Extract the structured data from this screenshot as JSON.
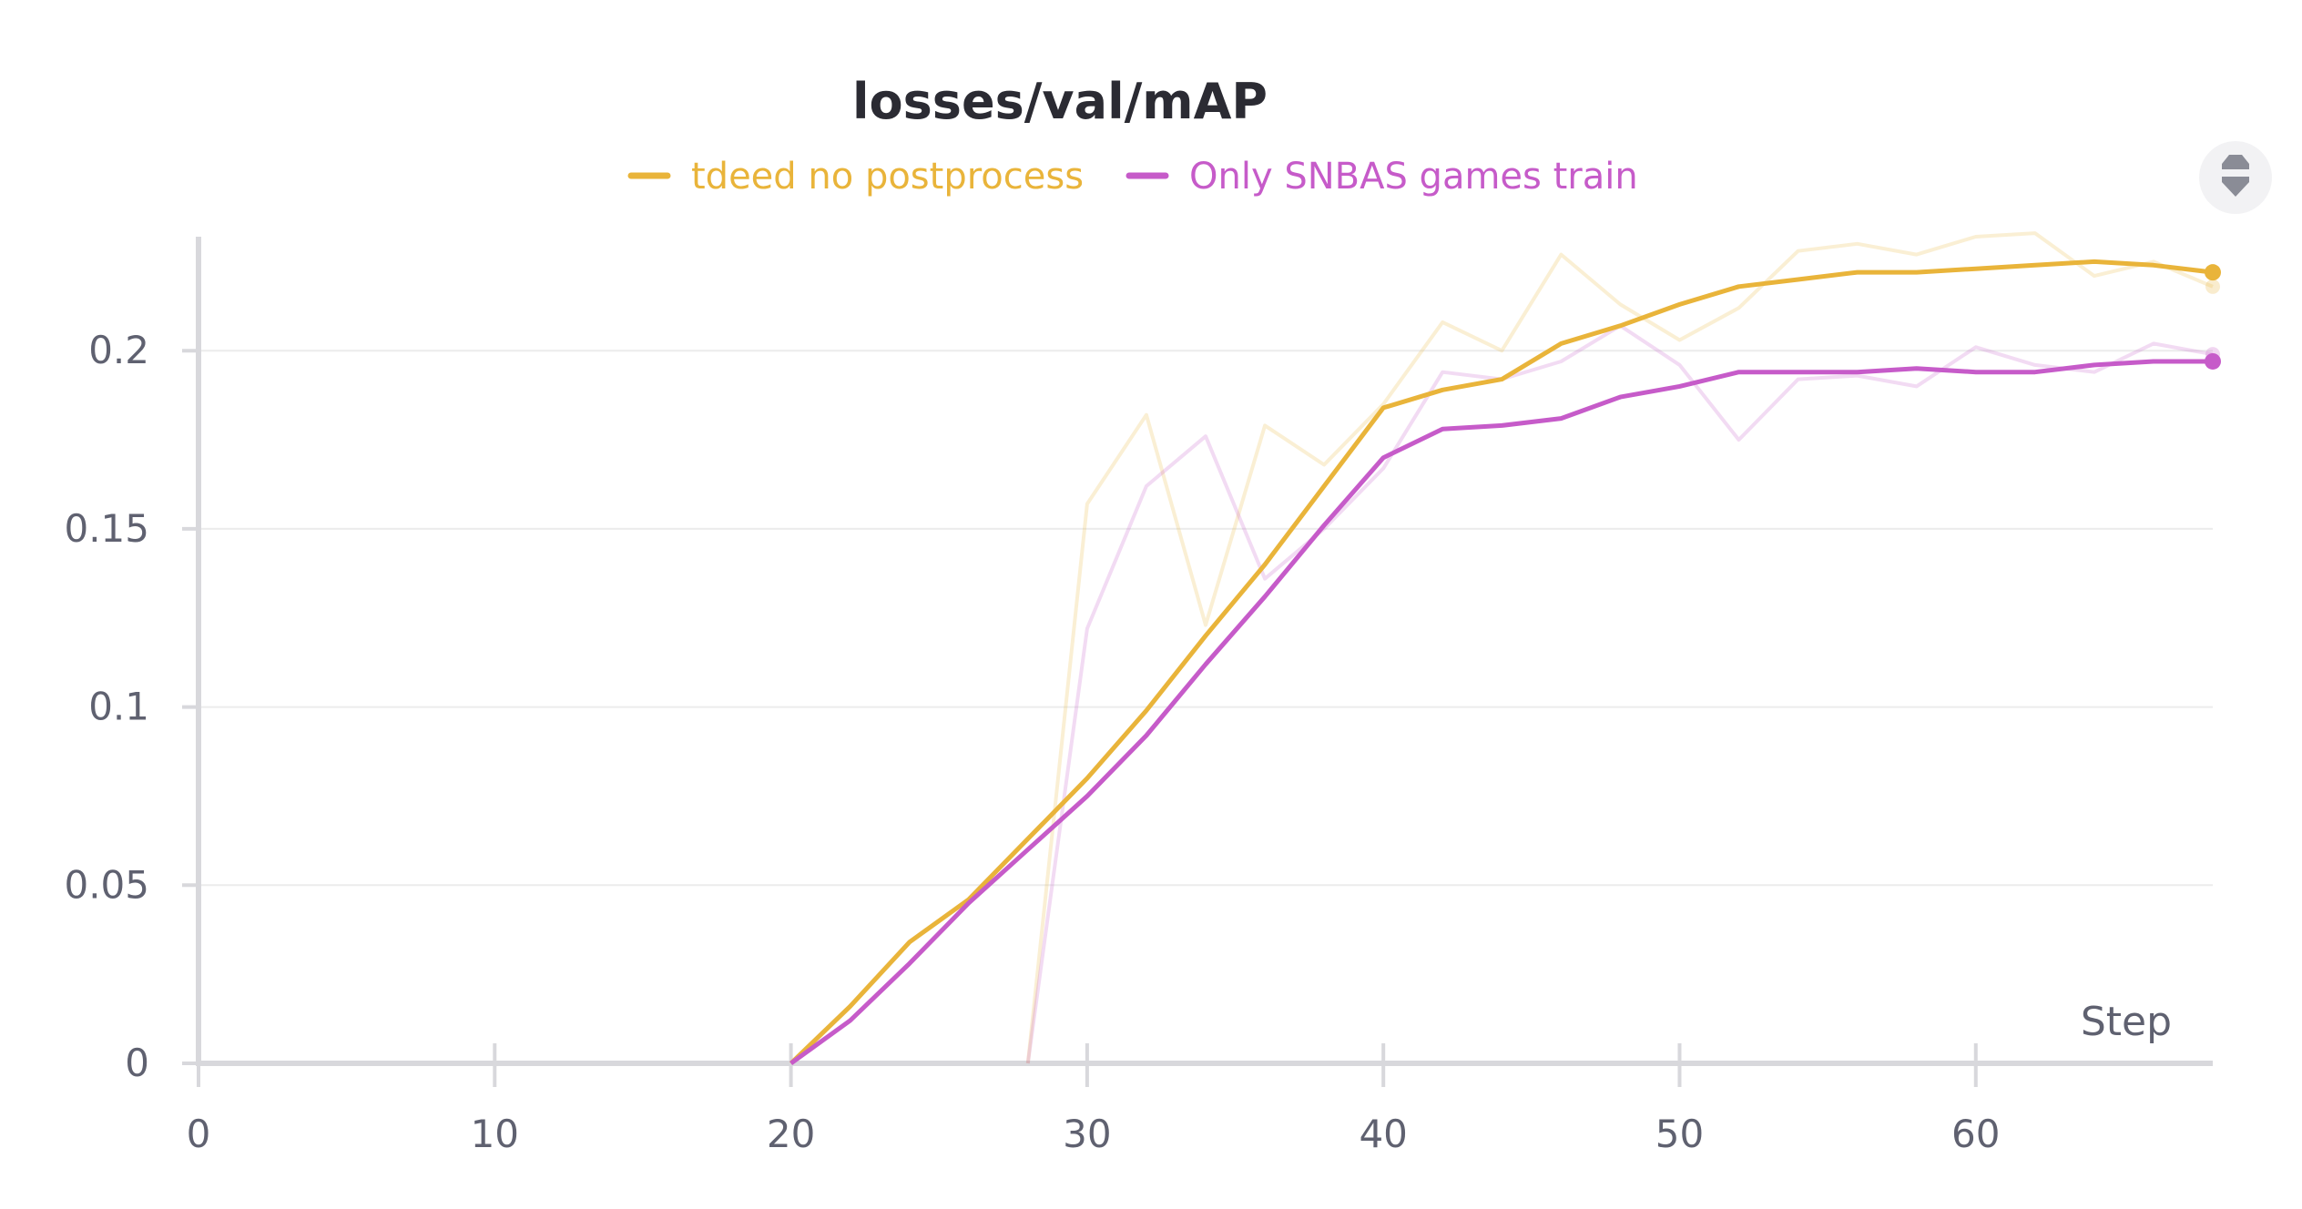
{
  "chart_data": {
    "type": "line",
    "title": "losses/val/mAP",
    "xlabel": "Step",
    "ylabel": "",
    "xlim": [
      0,
      68
    ],
    "ylim": [
      0,
      0.2
    ],
    "x_ticks": [
      "0",
      "10",
      "20",
      "30",
      "40",
      "50",
      "60"
    ],
    "y_ticks": [
      "0",
      "0.05",
      "0.1",
      "0.15",
      "0.2"
    ],
    "legend_position": "top-center",
    "grid": true,
    "series": [
      {
        "name": "tdeed no postprocess",
        "color": "#e9b43a",
        "smoothed": [
          [
            20,
            0
          ],
          [
            22,
            0.016
          ],
          [
            24,
            0.034
          ],
          [
            26,
            0.046
          ],
          [
            28,
            0.063
          ],
          [
            30,
            0.08
          ],
          [
            32,
            0.099
          ],
          [
            34,
            0.12
          ],
          [
            36,
            0.14
          ],
          [
            38,
            0.162
          ],
          [
            40,
            0.184
          ],
          [
            42,
            0.189
          ],
          [
            44,
            0.192
          ],
          [
            46,
            0.202
          ],
          [
            48,
            0.207
          ],
          [
            50,
            0.213
          ],
          [
            52,
            0.218
          ],
          [
            54,
            0.22
          ],
          [
            56,
            0.222
          ],
          [
            58,
            0.222
          ],
          [
            60,
            0.223
          ],
          [
            62,
            0.224
          ],
          [
            64,
            0.225
          ],
          [
            66,
            0.224
          ],
          [
            68,
            0.222
          ]
        ],
        "raw": [
          [
            28,
            0
          ],
          [
            30,
            0.157
          ],
          [
            32,
            0.182
          ],
          [
            34,
            0.123
          ],
          [
            36,
            0.179
          ],
          [
            38,
            0.168
          ],
          [
            40,
            0.185
          ],
          [
            42,
            0.208
          ],
          [
            44,
            0.2
          ],
          [
            46,
            0.227
          ],
          [
            48,
            0.213
          ],
          [
            50,
            0.203
          ],
          [
            52,
            0.212
          ],
          [
            54,
            0.228
          ],
          [
            56,
            0.23
          ],
          [
            58,
            0.227
          ],
          [
            60,
            0.232
          ],
          [
            62,
            0.233
          ],
          [
            64,
            0.221
          ],
          [
            66,
            0.225
          ],
          [
            68,
            0.218
          ]
        ]
      },
      {
        "name": "Only SNBAS games train",
        "color": "#c65bc9",
        "smoothed": [
          [
            20,
            0
          ],
          [
            22,
            0.012
          ],
          [
            24,
            0.028
          ],
          [
            26,
            0.045
          ],
          [
            28,
            0.06
          ],
          [
            30,
            0.075
          ],
          [
            32,
            0.092
          ],
          [
            34,
            0.112
          ],
          [
            36,
            0.131
          ],
          [
            38,
            0.151
          ],
          [
            40,
            0.17
          ],
          [
            42,
            0.178
          ],
          [
            44,
            0.179
          ],
          [
            46,
            0.181
          ],
          [
            48,
            0.187
          ],
          [
            50,
            0.19
          ],
          [
            52,
            0.194
          ],
          [
            54,
            0.194
          ],
          [
            56,
            0.194
          ],
          [
            58,
            0.195
          ],
          [
            60,
            0.194
          ],
          [
            62,
            0.194
          ],
          [
            64,
            0.196
          ],
          [
            66,
            0.197
          ],
          [
            68,
            0.197
          ]
        ],
        "raw": [
          [
            28,
            0
          ],
          [
            30,
            0.122
          ],
          [
            32,
            0.162
          ],
          [
            34,
            0.176
          ],
          [
            36,
            0.136
          ],
          [
            38,
            0.15
          ],
          [
            40,
            0.167
          ],
          [
            42,
            0.194
          ],
          [
            44,
            0.192
          ],
          [
            46,
            0.197
          ],
          [
            48,
            0.207
          ],
          [
            50,
            0.196
          ],
          [
            52,
            0.175
          ],
          [
            54,
            0.192
          ],
          [
            56,
            0.193
          ],
          [
            58,
            0.19
          ],
          [
            60,
            0.201
          ],
          [
            62,
            0.196
          ],
          [
            64,
            0.194
          ],
          [
            66,
            0.202
          ],
          [
            68,
            0.199
          ]
        ]
      }
    ]
  },
  "icons": {
    "legend_toggle": "legend-collapse-icon"
  }
}
